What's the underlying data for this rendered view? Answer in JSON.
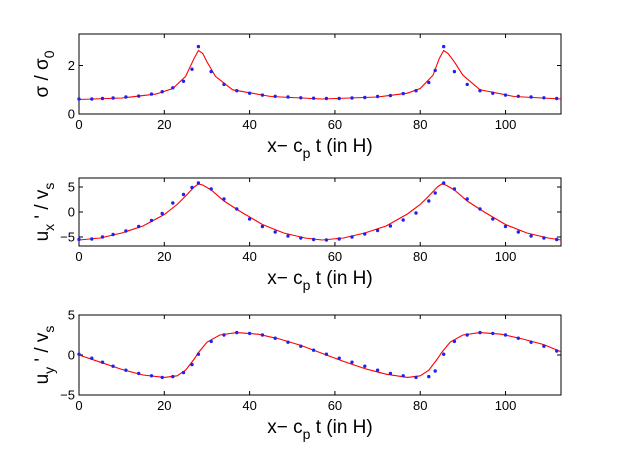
{
  "chart_data": [
    {
      "type": "scatter",
      "xlabel": {
        "main": "x− c",
        "sub": "p",
        "rest": " t (in H)"
      },
      "ylabel": {
        "main": "σ / σ",
        "sub": "0"
      },
      "xlim": [
        0,
        113
      ],
      "ylim": [
        0,
        3.3
      ],
      "xticks": [
        "0",
        "20",
        "40",
        "60",
        "80",
        "100"
      ],
      "xtick_values": [
        0,
        20,
        40,
        60,
        80,
        100
      ],
      "yticks": [
        "0",
        "2"
      ],
      "ytick_values": [
        0,
        2
      ],
      "grid": false,
      "series": [
        {
          "kind": "line",
          "color": "#ff0000",
          "x": [
            0,
            10,
            18,
            22,
            25,
            27,
            28,
            29,
            30,
            32,
            36,
            45,
            57,
            70,
            77,
            80,
            83,
            84.5,
            85.5,
            86.5,
            88,
            90,
            94,
            102,
            113
          ],
          "y": [
            0.6,
            0.66,
            0.82,
            1.05,
            1.55,
            2.3,
            2.62,
            2.5,
            2.15,
            1.55,
            1.0,
            0.72,
            0.62,
            0.7,
            0.86,
            1.05,
            1.6,
            2.3,
            2.62,
            2.5,
            2.15,
            1.6,
            1.0,
            0.72,
            0.62
          ]
        },
        {
          "kind": "markers",
          "color": "#2222ee",
          "x": [
            0,
            3,
            5.5,
            8,
            11,
            14,
            17,
            19.5,
            22,
            24.5,
            26.5,
            28,
            31,
            34,
            37,
            40,
            43,
            46,
            49,
            52,
            55,
            58,
            61,
            64,
            67,
            70,
            73,
            76,
            79,
            82,
            83.5,
            85.5,
            88,
            91,
            94,
            97,
            100,
            103,
            106,
            109,
            112
          ],
          "y": [
            0.62,
            0.62,
            0.64,
            0.66,
            0.7,
            0.74,
            0.82,
            0.92,
            1.08,
            1.35,
            1.85,
            2.78,
            1.75,
            1.22,
            0.96,
            0.86,
            0.78,
            0.73,
            0.7,
            0.67,
            0.65,
            0.64,
            0.64,
            0.66,
            0.68,
            0.72,
            0.76,
            0.84,
            0.96,
            1.3,
            1.8,
            2.78,
            1.75,
            1.22,
            0.96,
            0.86,
            0.78,
            0.73,
            0.7,
            0.67,
            0.64
          ]
        }
      ]
    },
    {
      "type": "scatter",
      "xlabel": {
        "main": "x− c",
        "sub": "p",
        "rest": " t (in H)"
      },
      "ylabel": {
        "main": "u",
        "sub": "x",
        "rest": " ' / v",
        "sub2": "s"
      },
      "xlim": [
        0,
        113
      ],
      "ylim": [
        -6.8,
        6.8
      ],
      "xticks": [
        "0",
        "20",
        "40",
        "60",
        "80",
        "100"
      ],
      "xtick_values": [
        0,
        20,
        40,
        60,
        80,
        100
      ],
      "yticks": [
        "−5",
        "0",
        "5"
      ],
      "ytick_values": [
        -5,
        0,
        5
      ],
      "grid": false,
      "series": [
        {
          "kind": "line",
          "color": "#ff0000",
          "x": [
            0,
            5,
            10,
            15,
            20,
            23,
            25,
            27,
            28,
            29,
            31,
            34,
            38,
            43,
            48,
            53,
            57,
            62,
            67,
            72,
            77,
            80,
            82,
            84,
            85,
            86,
            88,
            91,
            95,
            100,
            105,
            110,
            113
          ],
          "y": [
            -5.6,
            -5.2,
            -4.2,
            -2.8,
            -0.5,
            1.5,
            3.2,
            5.0,
            5.6,
            5.4,
            4.4,
            2.2,
            0.0,
            -2.5,
            -4.2,
            -5.2,
            -5.6,
            -5.2,
            -4.2,
            -2.8,
            -0.4,
            1.5,
            3.2,
            5.0,
            5.6,
            5.4,
            4.4,
            2.2,
            0.0,
            -2.5,
            -4.2,
            -5.2,
            -5.6
          ]
        },
        {
          "kind": "markers",
          "color": "#2222ee",
          "x": [
            0,
            3,
            5.5,
            8,
            11,
            14,
            17,
            19.5,
            22,
            24.5,
            26.5,
            28,
            31,
            34,
            37,
            40,
            43,
            46,
            49,
            52,
            55,
            58,
            61,
            64,
            67,
            70,
            73,
            76,
            79,
            82,
            83.5,
            85.5,
            88,
            91,
            94,
            97,
            100,
            103,
            106,
            109,
            112
          ],
          "y": [
            -5.5,
            -5.4,
            -5.0,
            -4.5,
            -3.8,
            -2.9,
            -1.7,
            -0.3,
            1.8,
            3.5,
            4.9,
            5.8,
            4.6,
            2.6,
            0.6,
            -1.4,
            -2.9,
            -4.0,
            -4.8,
            -5.2,
            -5.5,
            -5.6,
            -5.4,
            -5.0,
            -4.4,
            -3.7,
            -2.8,
            -1.6,
            -0.2,
            2.2,
            3.8,
            5.8,
            4.6,
            2.6,
            0.6,
            -1.4,
            -2.9,
            -4.0,
            -4.8,
            -5.2,
            -5.5
          ]
        }
      ]
    },
    {
      "type": "scatter",
      "xlabel": {
        "main": "x− c",
        "sub": "p",
        "rest": " t (in H)"
      },
      "ylabel": {
        "main": "u",
        "sub": "y",
        "rest": " ' / v",
        "sub2": "s"
      },
      "xlim": [
        0,
        113
      ],
      "ylim": [
        -5,
        5
      ],
      "xticks": [
        "0",
        "20",
        "40",
        "60",
        "80",
        "100"
      ],
      "xtick_values": [
        0,
        20,
        40,
        60,
        80,
        100
      ],
      "yticks": [
        "−5",
        "0",
        "5"
      ],
      "ytick_values": [
        -5,
        0,
        5
      ],
      "grid": false,
      "series": [
        {
          "kind": "line",
          "color": "#ff0000",
          "x": [
            0,
            5,
            10,
            15,
            20,
            23,
            25,
            27,
            28,
            30,
            33,
            37,
            42,
            47,
            52,
            57,
            62,
            67,
            72,
            77,
            80,
            82,
            84,
            85,
            87,
            90,
            94,
            99,
            104,
            109,
            113
          ],
          "y": [
            0.0,
            -0.9,
            -1.8,
            -2.5,
            -2.8,
            -2.6,
            -1.9,
            -0.5,
            0.3,
            1.6,
            2.5,
            2.8,
            2.6,
            2.0,
            1.2,
            0.2,
            -0.8,
            -1.7,
            -2.4,
            -2.8,
            -2.6,
            -1.9,
            -0.5,
            0.3,
            1.6,
            2.5,
            2.8,
            2.6,
            2.0,
            1.3,
            0.4
          ]
        },
        {
          "kind": "markers",
          "color": "#2222ee",
          "x": [
            0,
            3,
            5.5,
            8,
            11,
            14,
            17,
            19.5,
            22,
            24.5,
            26.5,
            28,
            31,
            34,
            37,
            40,
            43,
            46,
            49,
            52,
            55,
            58,
            61,
            64,
            67,
            70,
            73,
            76,
            79,
            82,
            83.5,
            85.5,
            88,
            91,
            94,
            97,
            100,
            103,
            106,
            109,
            112
          ],
          "y": [
            0.1,
            -0.4,
            -0.9,
            -1.4,
            -1.9,
            -2.3,
            -2.6,
            -2.8,
            -2.7,
            -2.2,
            -1.2,
            0.1,
            1.7,
            2.5,
            2.8,
            2.7,
            2.5,
            2.1,
            1.6,
            1.1,
            0.6,
            0.1,
            -0.4,
            -0.9,
            -1.4,
            -1.9,
            -2.3,
            -2.6,
            -2.8,
            -2.7,
            -2.0,
            0.1,
            1.7,
            2.5,
            2.8,
            2.7,
            2.5,
            2.1,
            1.6,
            1.1,
            0.5
          ]
        }
      ]
    }
  ]
}
